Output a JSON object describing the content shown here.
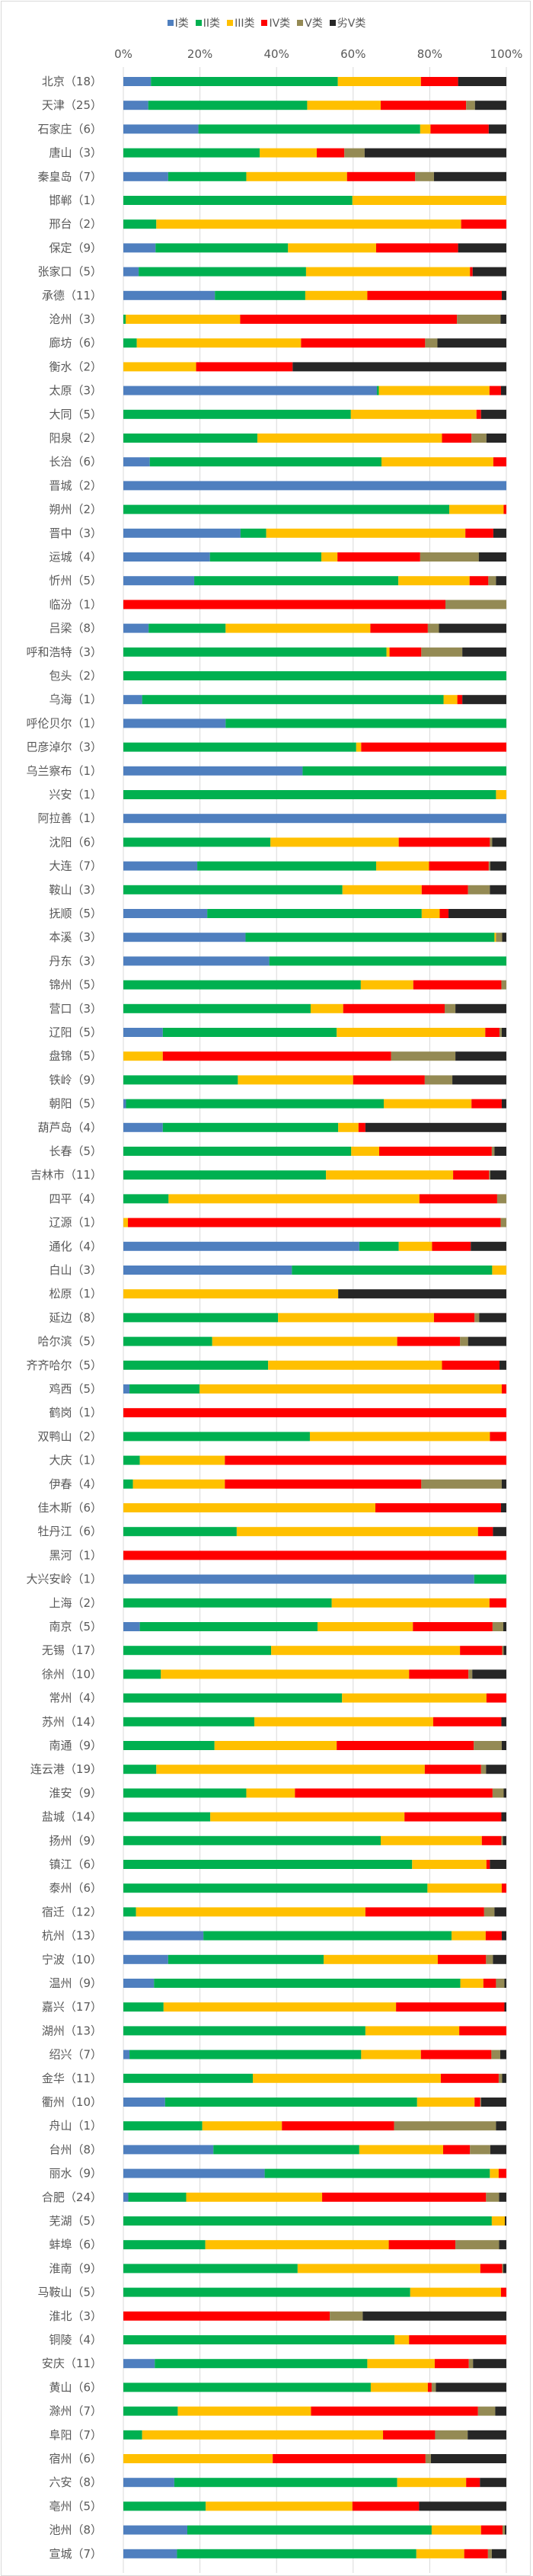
{
  "chart_data": {
    "type": "bar",
    "orientation": "horizontal",
    "stacked": "percent",
    "title": "",
    "xlabel": "",
    "ylabel": "",
    "xlim": [
      0,
      100
    ],
    "x_ticks": [
      "0%",
      "20%",
      "40%",
      "60%",
      "80%",
      "100%"
    ],
    "grid": "vertical",
    "legend_position": "top",
    "series_names": [
      "I类",
      "II类",
      "III类",
      "IV类",
      "V类",
      "劣V类"
    ],
    "colors": [
      "#4f7fbf",
      "#00b050",
      "#ffc000",
      "#ff0000",
      "#948a54",
      "#262626"
    ],
    "rows": [
      [
        "北京",
        "18",
        7.2,
        48.8,
        21.7,
        9.7,
        0,
        12.6
      ],
      [
        "天津",
        "25",
        6.5,
        41.5,
        19.2,
        22.3,
        2.3,
        8.2
      ],
      [
        "石家庄",
        "6",
        19.6,
        57.9,
        2.7,
        15.2,
        0,
        4.6
      ],
      [
        "唐山",
        "3",
        0,
        35.6,
        14.9,
        7.2,
        5.3,
        37.0
      ],
      [
        "秦皇岛",
        "7",
        11.7,
        20.4,
        26.3,
        17.8,
        4.9,
        18.9
      ],
      [
        "邯郸",
        "1",
        0,
        59.8,
        40.2,
        0,
        0,
        0
      ],
      [
        "邢台",
        "2",
        0,
        8.6,
        79.6,
        11.8,
        0,
        0
      ],
      [
        "保定",
        "9",
        8.4,
        34.6,
        23.0,
        21.4,
        0,
        12.6
      ],
      [
        "张家口",
        "5",
        4.0,
        43.7,
        42.8,
        0.7,
        0,
        8.8
      ],
      [
        "承德",
        "11",
        23.9,
        23.6,
        16.2,
        35.1,
        0,
        1.2
      ],
      [
        "沧州",
        "3",
        0,
        0.6,
        29.9,
        56.6,
        11.4,
        1.5
      ],
      [
        "廊坊",
        "6",
        0,
        3.5,
        42.9,
        32.4,
        3.2,
        18.0
      ],
      [
        "衡水",
        "2",
        0,
        0,
        19.0,
        25.2,
        0,
        55.8
      ],
      [
        "太原",
        "3",
        66.2,
        0.5,
        28.9,
        3.0,
        0,
        1.4
      ],
      [
        "大同",
        "5",
        0,
        59.4,
        32.8,
        1.2,
        0,
        6.6
      ],
      [
        "阳泉",
        "2",
        0,
        35.0,
        48.2,
        7.7,
        3.9,
        5.2
      ],
      [
        "长治",
        "6",
        6.9,
        60.5,
        29.2,
        3.4,
        0,
        0
      ],
      [
        "晋城",
        "2",
        100,
        0,
        0,
        0,
        0,
        0
      ],
      [
        "朔州",
        "2",
        0,
        85.1,
        14.2,
        0.7,
        0,
        0
      ],
      [
        "晋中",
        "3",
        30.6,
        6.7,
        52.0,
        7.3,
        0,
        3.4
      ],
      [
        "运城",
        "4",
        22.6,
        29.1,
        4.2,
        21.6,
        15.3,
        7.2
      ],
      [
        "忻州",
        "5",
        18.5,
        53.3,
        18.6,
        4.9,
        2.0,
        2.7
      ],
      [
        "临汾",
        "1",
        0,
        0,
        0,
        84.1,
        15.9,
        0
      ],
      [
        "吕梁",
        "8",
        6.6,
        20.1,
        37.8,
        15.0,
        2.9,
        17.6
      ],
      [
        "呼和浩特",
        "3",
        0,
        68.7,
        0.8,
        8.3,
        10.7,
        11.5
      ],
      [
        "包头",
        "2",
        0,
        100,
        0,
        0,
        0,
        0
      ],
      [
        "乌海",
        "1",
        4.9,
        78.7,
        3.6,
        1.3,
        0,
        11.5
      ],
      [
        "呼伦贝尔",
        "1",
        26.7,
        73.3,
        0,
        0,
        0,
        0
      ],
      [
        "巴彦淖尔",
        "3",
        0,
        60.8,
        1.3,
        37.9,
        0,
        0
      ],
      [
        "乌兰察布",
        "1",
        46.8,
        53.2,
        0,
        0,
        0,
        0
      ],
      [
        "兴安",
        "1",
        0,
        97.3,
        2.7,
        0,
        0,
        0
      ],
      [
        "阿拉善",
        "1",
        100,
        0,
        0,
        0,
        0,
        0
      ],
      [
        "沈阳",
        "6",
        0,
        38.4,
        33.5,
        23.8,
        0.6,
        3.7
      ],
      [
        "大连",
        "7",
        19.3,
        46.7,
        13.8,
        15.6,
        0.4,
        4.2
      ],
      [
        "鞍山",
        "3",
        0,
        57.2,
        20.7,
        12.1,
        5.7,
        4.3
      ],
      [
        "抚顺",
        "5",
        21.9,
        56.0,
        4.7,
        2.3,
        0,
        15.1
      ],
      [
        "本溪",
        "3",
        31.9,
        65.0,
        0.4,
        0,
        1.6,
        1.1
      ],
      [
        "丹东",
        "3",
        38.1,
        61.9,
        0,
        0,
        0,
        0
      ],
      [
        "锦州",
        "5",
        0,
        62.0,
        13.7,
        23.0,
        1.3,
        0
      ],
      [
        "营口",
        "3",
        0,
        48.9,
        8.5,
        26.5,
        2.8,
        13.3
      ],
      [
        "辽阳",
        "5",
        10.3,
        45.4,
        38.8,
        3.7,
        0.6,
        1.2
      ],
      [
        "盘锦",
        "5",
        0,
        0,
        10.3,
        59.6,
        16.8,
        13.3
      ],
      [
        "铁岭",
        "9",
        0,
        29.9,
        30.1,
        18.7,
        7.2,
        14.1
      ],
      [
        "朝阳",
        "5",
        0.7,
        67.3,
        22.9,
        7.9,
        0,
        1.2
      ],
      [
        "葫芦岛",
        "4",
        10.3,
        45.8,
        5.3,
        1.8,
        0,
        36.8
      ],
      [
        "长春",
        "5",
        0,
        59.5,
        7.3,
        29.4,
        0.7,
        3.1
      ],
      [
        "吉林市",
        "11",
        0,
        52.9,
        33.2,
        9.4,
        0.3,
        4.2
      ],
      [
        "四平",
        "4",
        0,
        11.8,
        65.5,
        20.3,
        2.4,
        0
      ],
      [
        "辽源",
        "1",
        0,
        0,
        1.2,
        97.3,
        1.5,
        0
      ],
      [
        "通化",
        "4",
        61.6,
        10.3,
        8.7,
        10.1,
        0,
        9.3
      ],
      [
        "白山",
        "3",
        44.0,
        52.3,
        3.7,
        0,
        0,
        0
      ],
      [
        "松原",
        "1",
        0,
        0,
        56.1,
        0,
        0,
        43.9
      ],
      [
        "延边",
        "8",
        0,
        40.4,
        40.7,
        10.6,
        1.2,
        7.1
      ],
      [
        "哈尔滨",
        "5",
        0,
        23.2,
        48.3,
        16.4,
        2.1,
        10.0
      ],
      [
        "齐齐哈尔",
        "5",
        0,
        37.8,
        45.4,
        15.0,
        0,
        1.8
      ],
      [
        "鸡西",
        "5",
        1.6,
        18.3,
        78.9,
        1.2,
        0,
        0
      ],
      [
        "鹤岗",
        "1",
        0,
        0,
        0,
        100,
        0,
        0
      ],
      [
        "双鸭山",
        "2",
        0,
        48.7,
        47.0,
        4.3,
        0,
        0
      ],
      [
        "大庆",
        "1",
        0,
        4.3,
        22.2,
        73.5,
        0,
        0
      ],
      [
        "伊春",
        "4",
        0,
        2.5,
        24.0,
        51.3,
        21.0,
        1.2
      ],
      [
        "佳木斯",
        "6",
        0,
        0,
        65.8,
        32.8,
        0,
        1.4
      ],
      [
        "牡丹江",
        "6",
        0,
        29.6,
        63.0,
        3.9,
        0,
        3.5
      ],
      [
        "黑河",
        "1",
        0,
        0,
        0,
        100,
        0,
        0
      ],
      [
        "大兴安岭",
        "1",
        91.6,
        8.4,
        0,
        0,
        0,
        0
      ],
      [
        "上海",
        "2",
        0,
        54.4,
        41.2,
        4.4,
        0,
        0
      ],
      [
        "南京",
        "5",
        4.3,
        46.4,
        24.9,
        20.8,
        2.8,
        0.8
      ],
      [
        "无锡",
        "17",
        0,
        38.6,
        49.3,
        11.0,
        0.4,
        0.7
      ],
      [
        "徐州",
        "10",
        0,
        9.8,
        64.8,
        15.5,
        1.0,
        8.9
      ],
      [
        "常州",
        "4",
        0,
        57.1,
        37.7,
        5.2,
        0,
        0
      ],
      [
        "苏州",
        "14",
        0,
        34.2,
        46.7,
        17.8,
        0,
        1.3
      ],
      [
        "南通",
        "9",
        0,
        23.8,
        31.9,
        35.8,
        7.3,
        1.2
      ],
      [
        "连云港",
        "19",
        0,
        8.6,
        70.1,
        14.7,
        1.3,
        5.3
      ],
      [
        "淮安",
        "9",
        0,
        32.1,
        12.7,
        51.6,
        2.9,
        0.7
      ],
      [
        "盐城",
        "14",
        0,
        22.7,
        50.7,
        25.3,
        0,
        1.3
      ],
      [
        "扬州",
        "9",
        0,
        67.2,
        26.4,
        5.1,
        0.4,
        0.9
      ],
      [
        "镇江",
        "6",
        0,
        75.4,
        19.4,
        0.9,
        0,
        4.3
      ],
      [
        "泰州",
        "6",
        0,
        79.4,
        19.4,
        1.2,
        0,
        0
      ],
      [
        "宿迁",
        "12",
        0,
        3.3,
        59.9,
        31.0,
        2.7,
        3.1
      ],
      [
        "杭州",
        "13",
        20.9,
        64.8,
        8.9,
        4.2,
        0,
        1.2
      ],
      [
        "宁波",
        "10",
        11.7,
        40.6,
        29.8,
        12.6,
        1.8,
        3.5
      ],
      [
        "温州",
        "9",
        8.0,
        80.0,
        6.0,
        3.3,
        2.2,
        0.5
      ],
      [
        "嘉兴",
        "17",
        0,
        10.5,
        60.7,
        28.3,
        0,
        0.5
      ],
      [
        "湖州",
        "13",
        0,
        63.2,
        24.5,
        12.3,
        0,
        0
      ],
      [
        "绍兴",
        "7",
        1.6,
        60.5,
        15.6,
        18.4,
        2.3,
        1.6
      ],
      [
        "金华",
        "11",
        0,
        33.8,
        49.1,
        15.1,
        0.9,
        1.1
      ],
      [
        "衢州",
        "10",
        10.9,
        65.8,
        15.0,
        1.5,
        0.2,
        6.6
      ],
      [
        "舟山",
        "1",
        0,
        20.6,
        20.8,
        29.3,
        26.6,
        2.7
      ],
      [
        "台州",
        "8",
        23.5,
        38.1,
        21.9,
        7.0,
        5.3,
        4.2
      ],
      [
        "丽水",
        "9",
        36.9,
        58.8,
        2.3,
        2.0,
        0,
        0
      ],
      [
        "合肥",
        "24",
        1.3,
        15.1,
        35.5,
        42.8,
        3.4,
        1.9
      ],
      [
        "芜湖",
        "5",
        0,
        96.2,
        3.4,
        0,
        0,
        0.4
      ],
      [
        "蚌埠",
        "6",
        0,
        21.4,
        47.9,
        17.4,
        11.4,
        1.9
      ],
      [
        "淮南",
        "9",
        0,
        45.5,
        47.7,
        5.7,
        0.3,
        0.8
      ],
      [
        "马鞍山",
        "5",
        0,
        74.9,
        23.7,
        1.4,
        0,
        0
      ],
      [
        "淮北",
        "3",
        0,
        0,
        0,
        53.9,
        8.6,
        37.5
      ],
      [
        "铜陵",
        "4",
        0,
        70.8,
        3.8,
        25.4,
        0,
        0
      ],
      [
        "安庆",
        "11",
        8.2,
        55.5,
        17.6,
        8.9,
        1.1,
        8.7
      ],
      [
        "黄山",
        "6",
        0,
        64.6,
        14.9,
        1.0,
        1.1,
        18.4
      ],
      [
        "滁州",
        "7",
        0,
        14.2,
        34.8,
        43.6,
        4.5,
        2.9
      ],
      [
        "阜阳",
        "7",
        0,
        4.9,
        62.9,
        13.6,
        8.5,
        10.1
      ],
      [
        "宿州",
        "6",
        0,
        0,
        39.0,
        39.9,
        1.4,
        19.7
      ],
      [
        "六安",
        "8",
        13.3,
        58.2,
        18.0,
        3.6,
        0,
        6.9
      ],
      [
        "亳州",
        "5",
        0,
        21.5,
        38.3,
        17.4,
        0,
        22.8
      ],
      [
        "池州",
        "8",
        16.7,
        63.8,
        12.9,
        5.6,
        0.6,
        0.4
      ],
      [
        "宣城",
        "7",
        14.0,
        62.5,
        12.5,
        6.2,
        1.0,
        3.8
      ]
    ]
  }
}
